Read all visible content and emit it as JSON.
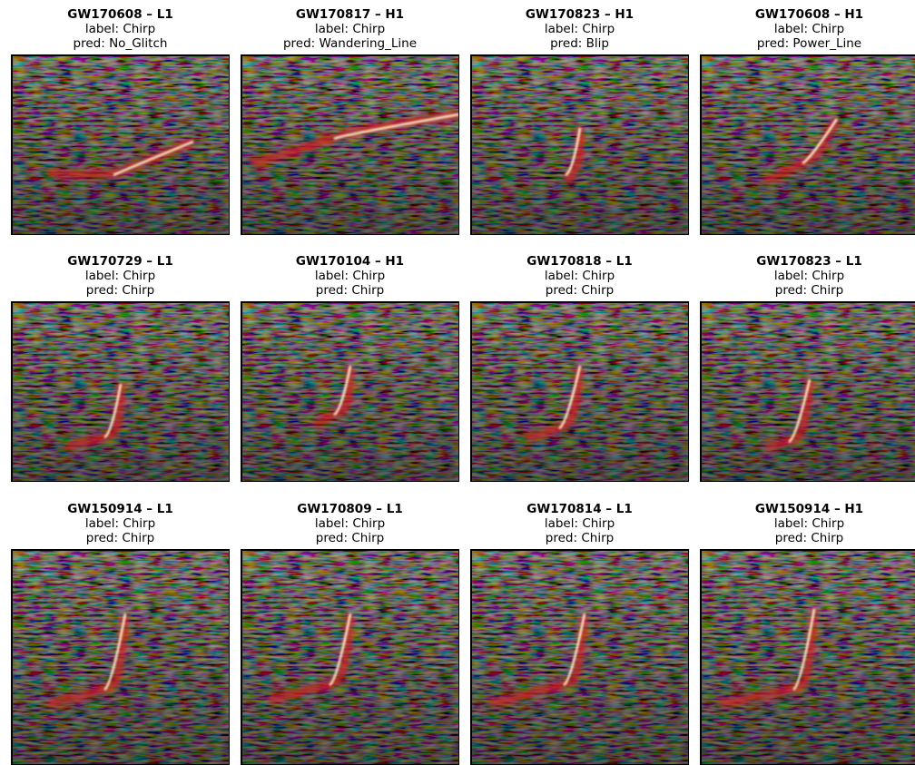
{
  "panels": [
    {
      "title": "GW170608 – L1",
      "label": "label: Chirp",
      "pred": "pred: No_Glitch"
    },
    {
      "title": "GW170817 – H1",
      "label": "label: Chirp",
      "pred": "pred: Wandering_Line"
    },
    {
      "title": "GW170823 – H1",
      "label": "label: Chirp",
      "pred": "pred: Blip"
    },
    {
      "title": "GW170608 – H1",
      "label": "label: Chirp",
      "pred": "pred: Power_Line"
    },
    {
      "title": "GW170729 – L1",
      "label": "label: Chirp",
      "pred": "pred: Chirp"
    },
    {
      "title": "GW170104 – H1",
      "label": "label: Chirp",
      "pred": "pred: Chirp"
    },
    {
      "title": "GW170818 – L1",
      "label": "label: Chirp",
      "pred": "pred: Chirp"
    },
    {
      "title": "GW170823 – L1",
      "label": "label: Chirp",
      "pred": "pred: Chirp"
    },
    {
      "title": "GW150914 – L1",
      "label": "label: Chirp",
      "pred": "pred: Chirp"
    },
    {
      "title": "GW170809 – L1",
      "label": "label: Chirp",
      "pred": "pred: Chirp"
    },
    {
      "title": "GW170814 – L1",
      "label": "label: Chirp",
      "pred": "pred: Chirp"
    },
    {
      "title": "GW150914 – H1",
      "label": "label: Chirp",
      "pred": "pred: Chirp"
    }
  ]
}
